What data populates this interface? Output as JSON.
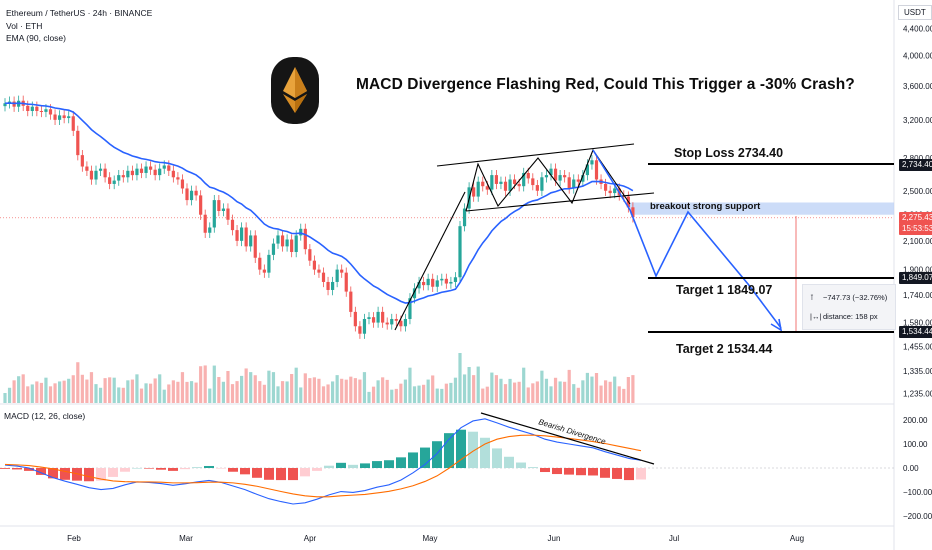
{
  "header": {
    "symbol_line": "Ethereum / TetherUS · 24h · BINANCE",
    "volume_line": "Vol · ETH",
    "ema_line": "EMA (90, close)"
  },
  "currency_button": "USDT",
  "title": "MACD Divergence Flashing Red,  Could This Trigger a -30% Crash?",
  "macd_label": "MACD (12, 26, close)",
  "annotations": {
    "stop_loss": "Stop Loss 2734.40",
    "support": "breakout strong support",
    "target1": "Target 1 1849.07",
    "target2": "Target 2 1534.44",
    "divergence": "Bearish Divergence"
  },
  "price_tags": {
    "stop": "2,734.40",
    "current": "2,275.43",
    "countdown": "15:53:53",
    "target1": "1,849.07",
    "target2": "1,534.44"
  },
  "measure_box": {
    "change": "−747.73 (−32.76%)",
    "distance": "distance: 158 px"
  },
  "colors": {
    "up": "#26a69a",
    "down": "#ef5350",
    "ema": "#2962ff",
    "macd_line": "#2962ff",
    "signal_line": "#ff6d00",
    "projection": "#2962ff",
    "support_zone": "#bbd0f5"
  },
  "chart_data": {
    "type": "candlestick",
    "symbol": "ETH/USDT",
    "timeframe": "24h",
    "price_axis_ticks": [
      4400,
      4000,
      3600,
      3200,
      2800,
      2500,
      2300,
      2100,
      1900,
      1740,
      1580,
      1455,
      1335,
      1235
    ],
    "price_axis_labels": [
      "4,400.00",
      "4,000.00",
      "3,600.00",
      "3,200.00",
      "2,800.00",
      "2,500.00",
      "2,300.00",
      "2,100.00",
      "1,900.00",
      "1,740.00",
      "1,580.00",
      "1,455.00",
      "1,335.00",
      "1,235.00"
    ],
    "x_tick_labels": [
      "Feb",
      "Mar",
      "Apr",
      "May",
      "Jun",
      "Jul",
      "Aug"
    ],
    "macd_axis_labels": [
      "200.00",
      "100.00",
      "0.00",
      "−100.00",
      "−200.00"
    ],
    "macd_axis_values": [
      200,
      100,
      0,
      -100,
      -200
    ],
    "levels": {
      "stop_loss": 2734.4,
      "target1": 1849.07,
      "target2": 1534.44,
      "current": 2275.43
    },
    "change_measure": {
      "points": -747.73,
      "percent": -32.76
    },
    "candles_close": [
      3390,
      3410,
      3350,
      3420,
      3360,
      3300,
      3350,
      3300,
      3290,
      3320,
      3260,
      3200,
      3250,
      3220,
      3240,
      3080,
      2830,
      2720,
      2680,
      2600,
      2680,
      2700,
      2620,
      2560,
      2590,
      2640,
      2620,
      2680,
      2640,
      2700,
      2660,
      2720,
      2690,
      2640,
      2700,
      2730,
      2680,
      2620,
      2600,
      2520,
      2420,
      2500,
      2460,
      2300,
      2160,
      2200,
      2420,
      2330,
      2350,
      2260,
      2180,
      2100,
      2200,
      2060,
      2140,
      1980,
      1900,
      1880,
      2000,
      2080,
      2140,
      2060,
      2110,
      2020,
      2140,
      2190,
      2040,
      1960,
      1900,
      1880,
      1820,
      1770,
      1820,
      1900,
      1880,
      1760,
      1640,
      1560,
      1520,
      1600,
      1610,
      1580,
      1640,
      1580,
      1570,
      1600,
      1590,
      1560,
      1600,
      1720,
      1780,
      1820,
      1800,
      1840,
      1790,
      1830,
      1840,
      1810,
      1820,
      1850,
      2210,
      2350,
      2530,
      2450,
      2580,
      2540,
      2510,
      2640,
      2560,
      2580,
      2500,
      2600,
      2560,
      2540,
      2660,
      2610,
      2550,
      2500,
      2620,
      2640,
      2700,
      2590,
      2640,
      2620,
      2520,
      2600,
      2580,
      2640,
      2740,
      2780,
      2600,
      2560,
      2500,
      2480,
      2520,
      2460,
      2450,
      2360,
      2280
    ],
    "macd": [
      12,
      8,
      0,
      -20,
      -40,
      -55,
      -68,
      -82,
      -90,
      -85,
      -70,
      -58,
      -60,
      -65,
      -72,
      -66,
      -58,
      -52,
      -60,
      -75,
      -90,
      -110,
      -128,
      -140,
      -150,
      -145,
      -130,
      -112,
      -98,
      -102,
      -94,
      -80,
      -70,
      -50,
      -20,
      15,
      60,
      120,
      168,
      196,
      205,
      188,
      170,
      155,
      140,
      120,
      108,
      100,
      92,
      84,
      68,
      54,
      40,
      32
    ],
    "signal": [
      15,
      13,
      10,
      4,
      -4,
      -14,
      -24,
      -36,
      -46,
      -54,
      -57,
      -58,
      -58,
      -59,
      -62,
      -62,
      -61,
      -59,
      -59,
      -62,
      -68,
      -76,
      -87,
      -98,
      -108,
      -116,
      -120,
      -120,
      -116,
      -113,
      -110,
      -104,
      -97,
      -87,
      -74,
      -56,
      -33,
      -1,
      35,
      70,
      100,
      120,
      131,
      136,
      137,
      134,
      129,
      123,
      117,
      110,
      102,
      92,
      82,
      72
    ]
  }
}
